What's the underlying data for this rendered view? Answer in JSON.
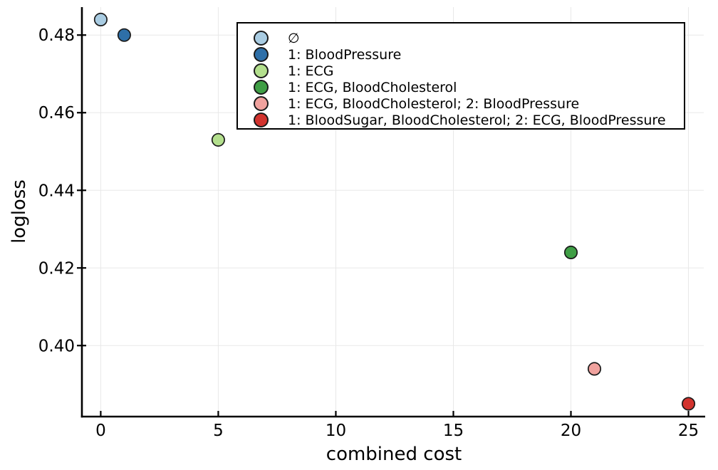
{
  "chart_data": {
    "type": "scatter",
    "title": "",
    "xlabel": "combined cost",
    "ylabel": "logloss",
    "xlim": [
      -0.8,
      25.65
    ],
    "ylim": [
      0.3817,
      0.4872
    ],
    "xticks": [
      0,
      5,
      10,
      15,
      20,
      25
    ],
    "yticks": [
      0.4,
      0.42,
      0.44,
      0.46,
      0.48
    ],
    "grid": true,
    "legend_position": "top-right-inside",
    "colors": {
      "background": "#ffffff",
      "grid": "#e8e8e8",
      "axis": "#000000",
      "tick_label": "#000000",
      "marker_stroke": "#1a1a1a",
      "legend_border": "#000000",
      "legend_background": "#ffffff"
    },
    "series": [
      {
        "name": "∅",
        "x": 0,
        "y": 0.484,
        "color": "#a9cce2"
      },
      {
        "name": "1: BloodPressure",
        "x": 1,
        "y": 0.48,
        "color": "#2e6fa8"
      },
      {
        "name": "1: ECG",
        "x": 5,
        "y": 0.453,
        "color": "#b3df8d"
      },
      {
        "name": "1: ECG, BloodCholesterol",
        "x": 20,
        "y": 0.424,
        "color": "#3f9e45"
      },
      {
        "name": "1: ECG, BloodCholesterol; 2: BloodPressure",
        "x": 21,
        "y": 0.394,
        "color": "#f0a29e"
      },
      {
        "name": "1: BloodSugar, BloodCholesterol; 2: ECG, BloodPressure",
        "x": 25,
        "y": 0.385,
        "color": "#d2332e"
      }
    ]
  }
}
